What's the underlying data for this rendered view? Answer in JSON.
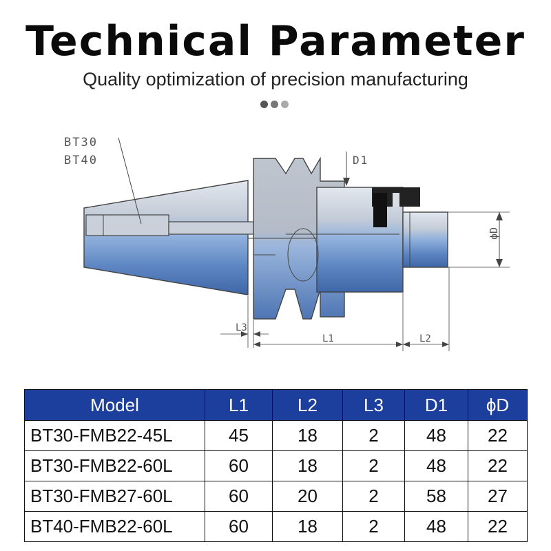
{
  "header": {
    "title": "Technical Parameter",
    "subtitle": "Quality optimization of precision manufacturing"
  },
  "dots": [
    "#555555",
    "#777777",
    "#aaaaaa"
  ],
  "diagram": {
    "labels": {
      "bt30": "BT30",
      "bt40": "BT40",
      "d1": "D1",
      "phi_d": "ϕD",
      "l1": "L1",
      "l2": "L2",
      "l3": "L3"
    },
    "colors": {
      "body": "#b4bcc8",
      "steel": "#5e86c0",
      "outline": "#444444"
    }
  },
  "table": {
    "headers": [
      "Model",
      "L1",
      "L2",
      "L3",
      "D1",
      "ϕD"
    ],
    "rows": [
      [
        "BT30-FMB22-45L",
        "45",
        "18",
        "2",
        "48",
        "22"
      ],
      [
        "BT30-FMB22-60L",
        "60",
        "18",
        "2",
        "48",
        "22"
      ],
      [
        "BT30-FMB27-60L",
        "60",
        "20",
        "2",
        "58",
        "27"
      ],
      [
        "BT40-FMB22-60L",
        "60",
        "18",
        "2",
        "48",
        "22"
      ]
    ],
    "header_color": "#1c3f9e"
  }
}
